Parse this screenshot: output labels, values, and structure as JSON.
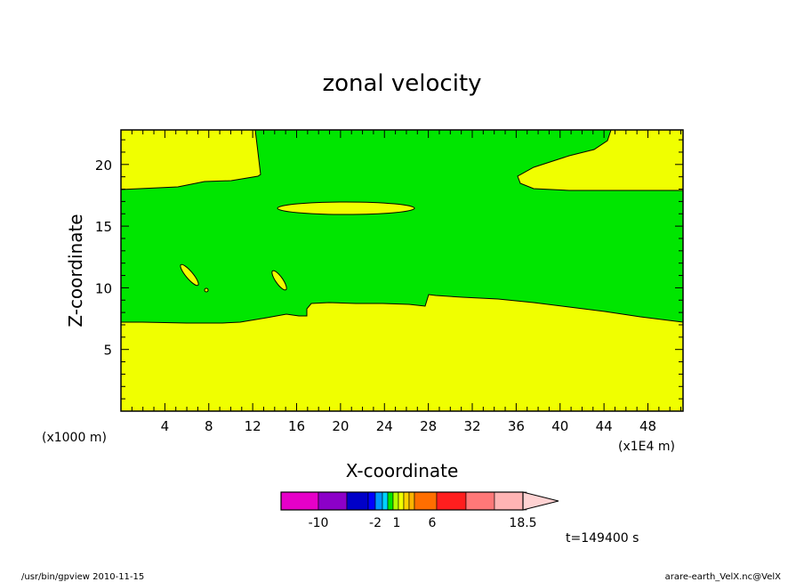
{
  "footer": {
    "left": "/usr/bin/gpview  2010-11-15",
    "right": "arare-earth_VelX.nc@VelX"
  },
  "chart_data": {
    "type": "contour",
    "title": "zonal velocity",
    "xlabel": "X-coordinate",
    "ylabel": "Z-coordinate",
    "x_unit_left": "(x1000 m)",
    "x_unit_right": "(x1E4 m)",
    "xlim": [
      0,
      51.2
    ],
    "ylim": [
      0,
      22.8
    ],
    "xticks": [
      4,
      8,
      12,
      16,
      20,
      24,
      28,
      32,
      36,
      40,
      44,
      48
    ],
    "yticks": [
      5,
      10,
      15,
      20
    ],
    "colors": {
      "green": "#00e600",
      "yellow": "#f0ff00"
    },
    "regions": [
      {
        "level": "green",
        "desc": "main band"
      },
      {
        "level": "yellow",
        "desc": "lower layer, top near z=7.4-9.5"
      },
      {
        "level": "yellow",
        "desc": "upper left, top boundary near z=18"
      },
      {
        "level": "yellow",
        "desc": "upper right, from x≈36"
      },
      {
        "level": "yellow",
        "desc": "ellipse centered x≈21.5, z≈16.6"
      },
      {
        "level": "yellow",
        "desc": "small blobs near x≈6 z≈11 and x≈14.5 z≈10.7"
      }
    ],
    "colorbar": {
      "colors": [
        "#e600c8",
        "#8c00c8",
        "#0000c8",
        "#0000ff",
        "#0096ff",
        "#00d2ff",
        "#00e600",
        "#b4ff00",
        "#f0ff00",
        "#ffd200",
        "#ffb400",
        "#ff6e00",
        "#ff1e1e",
        "#ff7878",
        "#ffb4b4",
        "#ffd2d2"
      ],
      "labels": [
        "-10",
        "-2",
        "1",
        "6",
        "18.5"
      ]
    },
    "time_label": "t=149400 s"
  }
}
